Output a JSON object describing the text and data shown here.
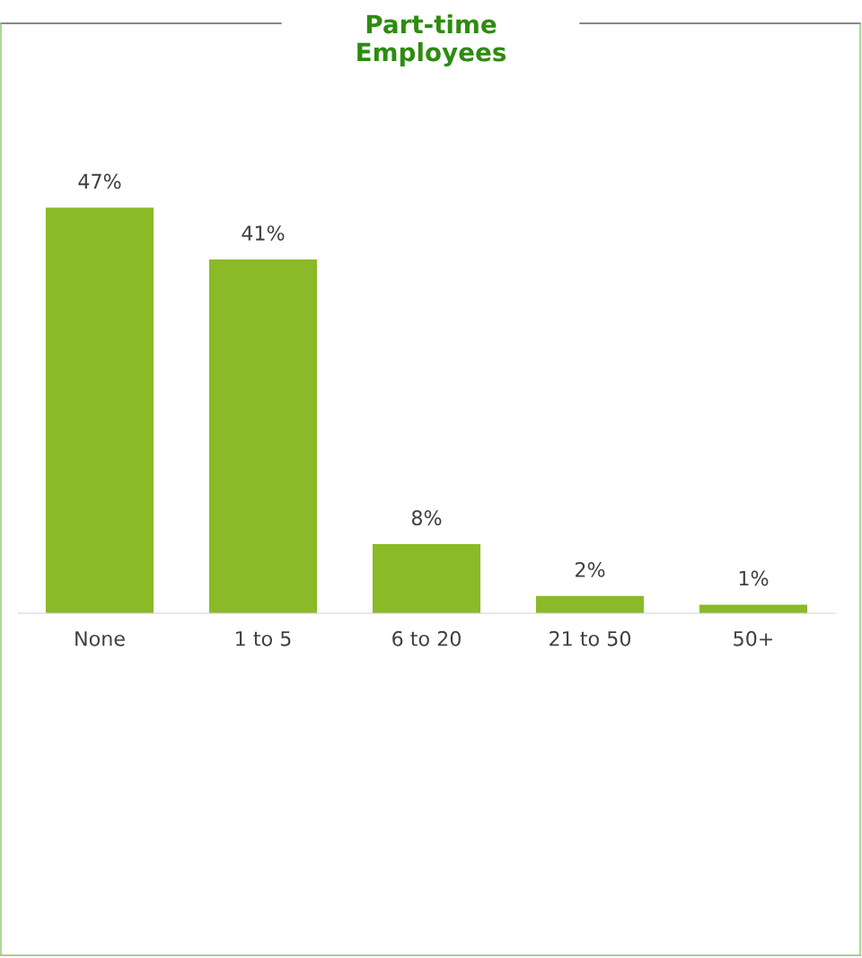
{
  "chart_data": {
    "type": "bar",
    "title": "Part-time\nEmployees",
    "categories": [
      "None",
      "1 to 5",
      "6 to 20",
      "21 to 50",
      "50+"
    ],
    "values": [
      47,
      41,
      8,
      2,
      1
    ],
    "color": "#8aba28",
    "value_labels": [
      "47%",
      "41%",
      "8%",
      "2%",
      "1%"
    ],
    "grid": false,
    "legend": false
  }
}
